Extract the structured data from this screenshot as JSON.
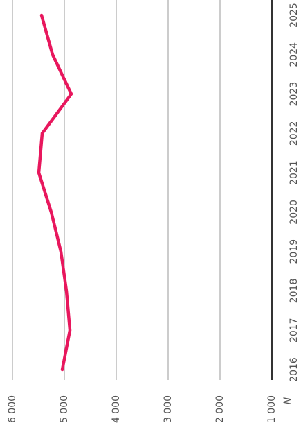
{
  "chart_data": {
    "type": "line",
    "categories": [
      "2016",
      "2017",
      "2018",
      "2019",
      "2020",
      "2021",
      "2022",
      "2023",
      "2024",
      "2025"
    ],
    "series": [
      {
        "name": null,
        "color": "#e8175d",
        "values": [
          5040,
          4893,
          4960,
          5067,
          5253,
          5493,
          5427,
          4867,
          5227,
          5440
        ]
      }
    ],
    "ylabel": "N",
    "ylim": [
      1000,
      6000
    ],
    "yticks": [
      {
        "value": 1000,
        "label": "1 000"
      },
      {
        "value": 2000,
        "label": "2 000"
      },
      {
        "value": 3000,
        "label": "3 000"
      },
      {
        "value": 4000,
        "label": "4 000"
      },
      {
        "value": 5000,
        "label": "5 000"
      },
      {
        "value": 6000,
        "label": "6 000"
      }
    ],
    "grid": true
  }
}
